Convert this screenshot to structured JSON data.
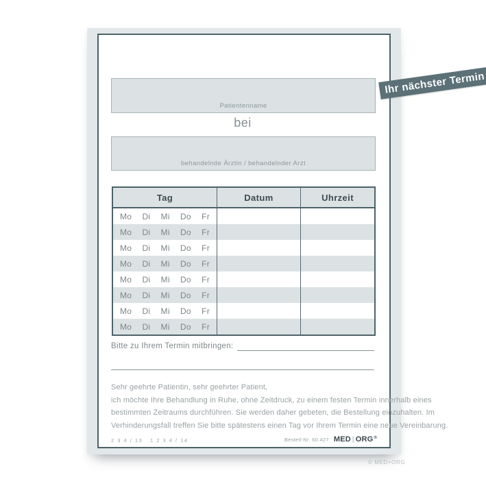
{
  "page": {
    "copyright": "© MED+ORG"
  },
  "banner": {
    "label": "Ihr nächster Termin"
  },
  "fields": {
    "patient_label": "Patientenname",
    "connector": "bei",
    "doctor_label": "behandelnde Ärztin / behandelnder Arzt"
  },
  "table": {
    "headers": [
      "Tag",
      "Datum",
      "Uhrzeit"
    ],
    "days": [
      "Mo",
      "Di",
      "Mi",
      "Do",
      "Fr"
    ],
    "row_count": 8
  },
  "bring_along": {
    "label": "Bitte zu Ihrem Termin mitbringen:"
  },
  "letter": {
    "lines": [
      "Sehr geehrte Patientin, sehr geehrter Patient,",
      "ich möchte Ihre Behandlung in Ruhe, ohne Zeitdruck, zu einem festen Termin innerhalb eines",
      "bestimmten Zeitraums durchführen. Sie werden daher gebeten, die Bestellung einzuhalten. Im",
      "Verhinderungsfall treffen Sie bitte spätestens einen Tag vor Ihrem Termin eine neue Vereinbarung."
    ]
  },
  "footer": {
    "print_code": "2 3 4 / 13   1 2 3 4 / 14",
    "order_no": "Bestell-Nr. 60.427",
    "brand_med": "MED",
    "brand_org": "ORG",
    "brand_reg": "®"
  },
  "colors": {
    "accent_dark": "#4c6269",
    "banner": "#5b7077",
    "light_fill": "#dce2e4",
    "card_edge": "#e2e7e9",
    "label_gray": "#8d979a"
  }
}
